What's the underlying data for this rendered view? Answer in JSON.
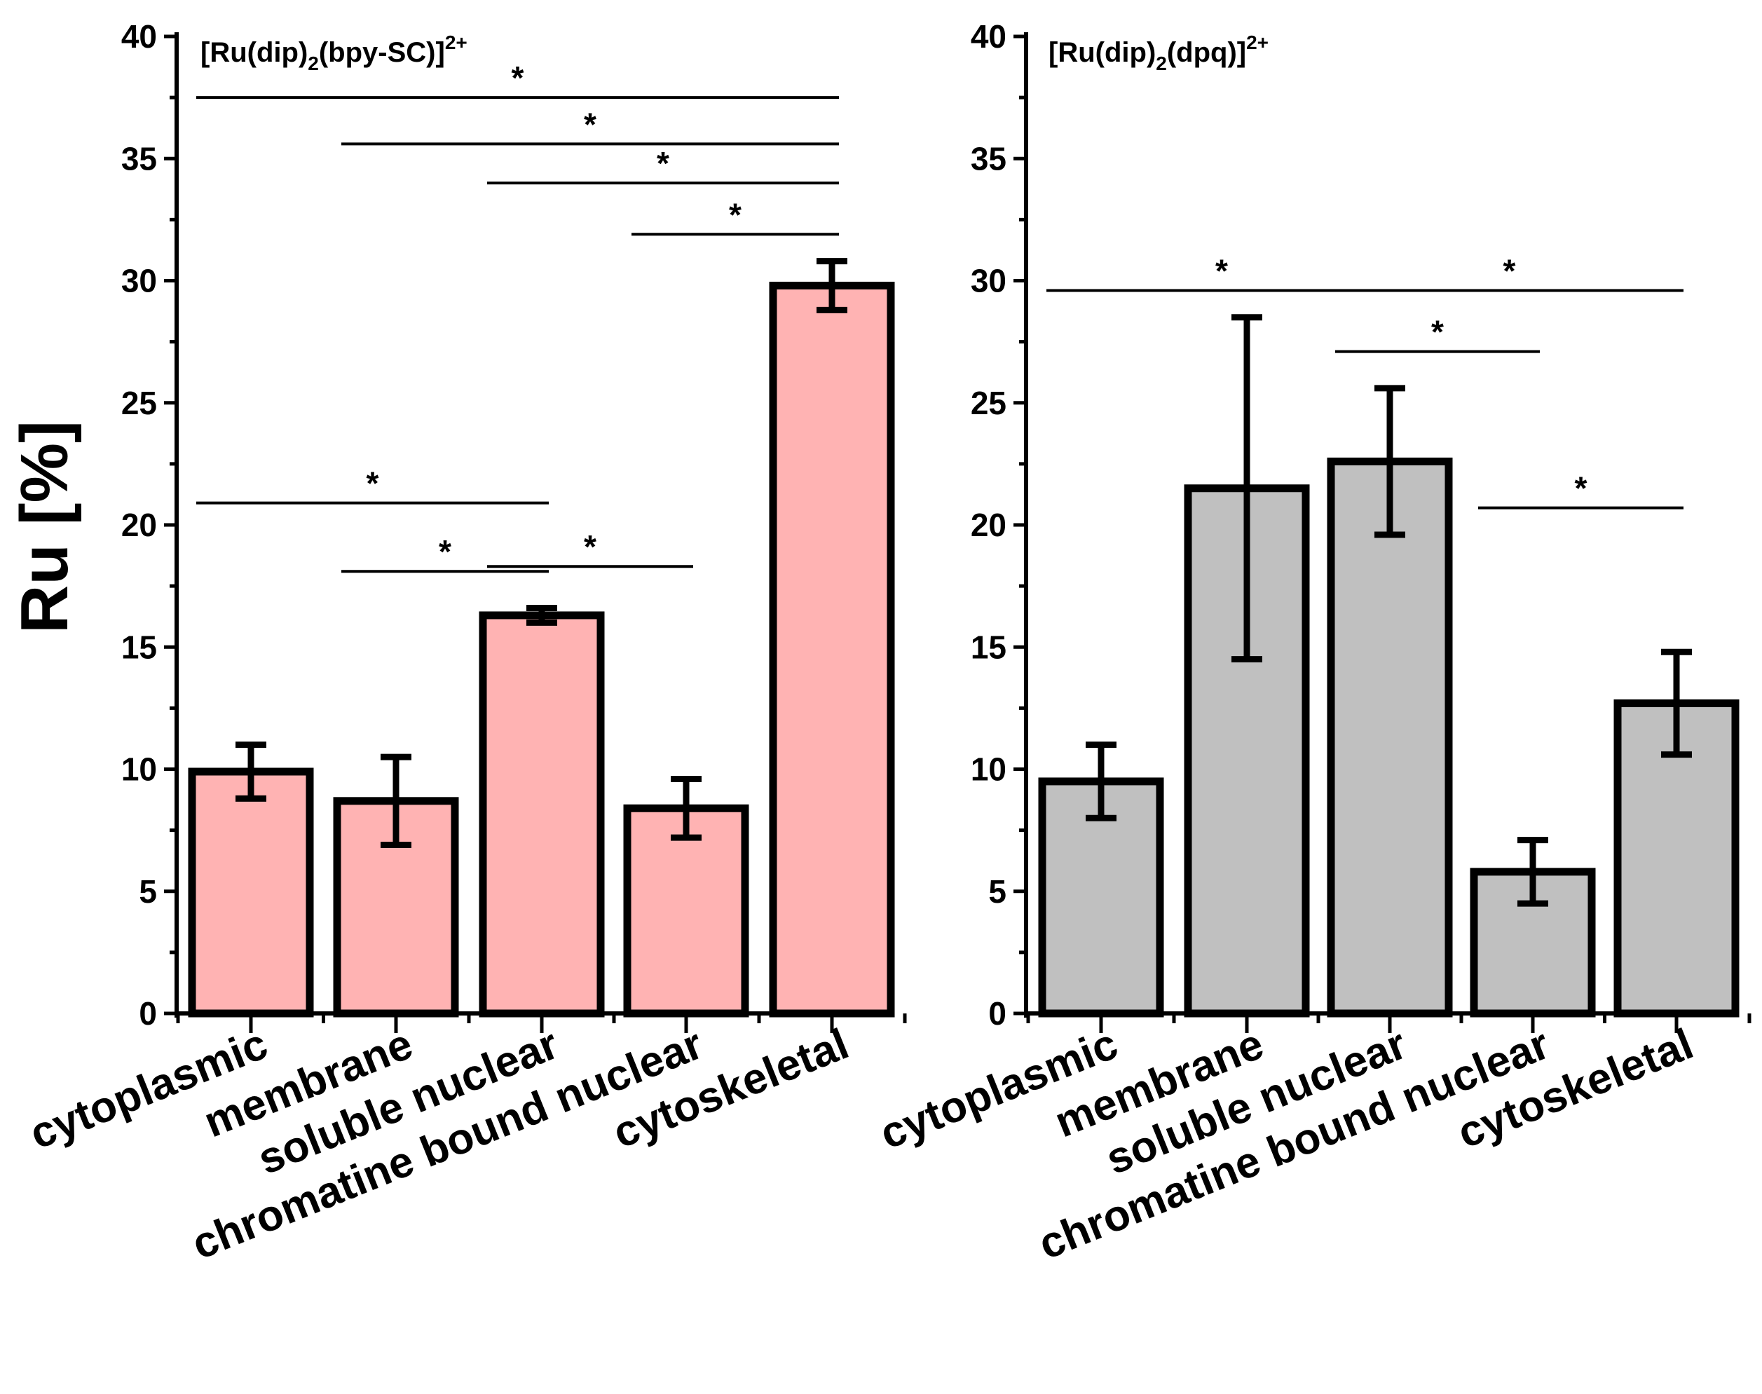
{
  "chart_data": [
    {
      "type": "bar",
      "title": "[Ru(dip)2(bpy-SC)]2+",
      "title_parts": {
        "prefix": "[Ru(dip)",
        "sub1": "2",
        "middle": "(bpy-SC)]",
        "sup": "2+"
      },
      "categories": [
        "cytoplasmic",
        "membrane",
        "soluble nuclear",
        "chromatine bound nuclear",
        "cytoskeletal"
      ],
      "values": [
        9.9,
        8.7,
        16.3,
        8.4,
        29.8
      ],
      "errors": [
        1.1,
        1.8,
        0.3,
        1.2,
        1.0
      ],
      "bar_color": "#ffb3b3",
      "ylabel": "Ru [%]",
      "xlabel": "",
      "ylim": [
        0,
        40
      ],
      "yticks": [
        "0",
        "5",
        "10",
        "15",
        "20",
        "25",
        "30",
        "35",
        "40"
      ],
      "significance": [
        {
          "from": 0,
          "to": 4,
          "y": 37.5,
          "label": "*"
        },
        {
          "from": 1,
          "to": 4,
          "y": 35.6,
          "label": "*"
        },
        {
          "from": 2,
          "to": 4,
          "y": 34.0,
          "label": "*"
        },
        {
          "from": 3,
          "to": 4,
          "y": 31.9,
          "label": "*"
        },
        {
          "from": 0,
          "to": 2,
          "y": 20.9,
          "label": "*"
        },
        {
          "from": 1,
          "to": 2,
          "y": 18.1,
          "label": "*"
        },
        {
          "from": 2,
          "to": 3,
          "y": 18.3,
          "label": "*"
        }
      ]
    },
    {
      "type": "bar",
      "title": "[Ru(dip)2(dpq)]2+",
      "title_parts": {
        "prefix": "[Ru(dip)",
        "sub1": "2",
        "middle": "(dpq)]",
        "sup": "2+"
      },
      "categories": [
        "cytoplasmic",
        "membrane",
        "soluble nuclear",
        "chromatine bound nuclear",
        "cytoskeletal"
      ],
      "values": [
        9.5,
        21.5,
        22.6,
        5.8,
        12.7
      ],
      "errors": [
        1.5,
        7.0,
        3.0,
        1.3,
        2.1
      ],
      "bar_color": "#c0c0c0",
      "ylabel": "",
      "xlabel": "",
      "ylim": [
        0,
        40
      ],
      "yticks": [
        "0",
        "5",
        "10",
        "15",
        "20",
        "25",
        "30",
        "35",
        "40"
      ],
      "significance": [
        {
          "from": 0,
          "to": 2,
          "y": 29.6,
          "label": "*"
        },
        {
          "from": 2,
          "to": 4,
          "y": 29.6,
          "label": "*"
        },
        {
          "from": 2,
          "to": 3,
          "y": 27.1,
          "label": "*"
        },
        {
          "from": 3,
          "to": 4,
          "y": 20.7,
          "label": "*"
        }
      ]
    }
  ]
}
